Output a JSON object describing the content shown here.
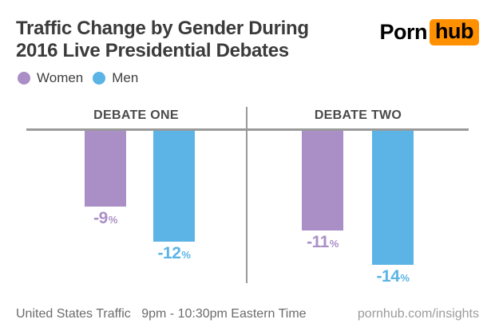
{
  "header": {
    "title_lines": [
      "Traffic Change by Gender During",
      "2016 Live Presidential Debates"
    ],
    "logo": {
      "part1": "Porn",
      "part2": "hub",
      "accent_color": "#ff9000"
    }
  },
  "legend": {
    "items": [
      {
        "label": "Women",
        "color": "#aa8fc7"
      },
      {
        "label": "Men",
        "color": "#5bb4e5"
      }
    ]
  },
  "chart_data": {
    "type": "bar",
    "title": "Traffic Change by Gender During 2016 Live Presidential Debates",
    "categories": [
      "DEBATE ONE",
      "DEBATE TWO"
    ],
    "series": [
      {
        "name": "Women",
        "color": "#aa8fc7",
        "values": [
          -9,
          -11
        ]
      },
      {
        "name": "Men",
        "color": "#5bb4e5",
        "values": [
          -12,
          -14
        ]
      }
    ],
    "ylim": [
      -15,
      0
    ],
    "grid": false,
    "legend_position": "top-left",
    "baseline_color": "#9a9a9a",
    "percent_sign": "%",
    "bars": [
      {
        "category": "DEBATE ONE",
        "series": "Women",
        "value": -9,
        "label": "-9",
        "color": "#aa8fc7"
      },
      {
        "category": "DEBATE ONE",
        "series": "Men",
        "value": -12,
        "label": "-12",
        "color": "#5bb4e5"
      },
      {
        "category": "DEBATE TWO",
        "series": "Women",
        "value": -11,
        "label": "-11",
        "color": "#aa8fc7"
      },
      {
        "category": "DEBATE TWO",
        "series": "Men",
        "value": -14,
        "label": "-14",
        "color": "#5bb4e5"
      }
    ]
  },
  "footer": {
    "left_primary": "United States Traffic",
    "left_secondary": "9pm - 10:30pm Eastern Time",
    "right": "pornhub.com/insights"
  }
}
